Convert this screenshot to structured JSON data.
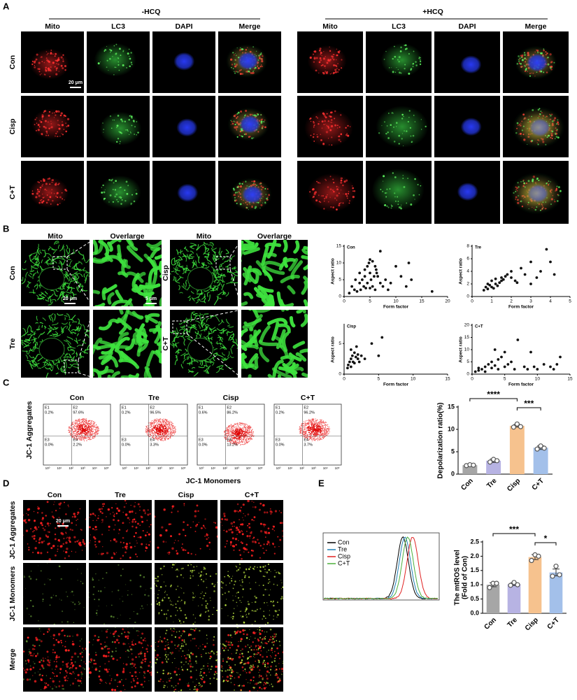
{
  "panels": {
    "A": {
      "label": "A",
      "groups": [
        {
          "title": "-HCQ",
          "columns": [
            "Mito",
            "LC3",
            "DAPI",
            "Merge"
          ]
        },
        {
          "title": "+HCQ",
          "columns": [
            "Mito",
            "LC3",
            "DAPI",
            "Merge"
          ]
        }
      ],
      "rows": [
        "Con",
        "Cisp",
        "C+T"
      ],
      "scale_bar": "20 μm"
    },
    "B": {
      "label": "B",
      "columns": [
        "Mito",
        "Overlarge",
        "Mito",
        "Overlarge"
      ],
      "rows": [
        "Con",
        "Tre",
        "Cisp",
        "C+T"
      ],
      "scale_bars": [
        "20 μm",
        "5 μm"
      ]
    },
    "C": {
      "label": "C",
      "y_label": "JC-1 Aggregates",
      "x_label": "JC-1 Monomers",
      "axis_ticks": [
        "10⁰",
        "10¹",
        "10²",
        "10³",
        "10⁴",
        "10⁵"
      ],
      "plots": [
        {
          "title": "Con",
          "quadrants": [
            [
              "E1",
              "0.2%"
            ],
            [
              "E2",
              "97.6%"
            ],
            [
              "E3",
              "0.0%"
            ],
            [
              "E4",
              "2.2%"
            ]
          ]
        },
        {
          "title": "Tre",
          "quadrants": [
            [
              "E1",
              "0.2%"
            ],
            [
              "E2",
              "96.5%"
            ],
            [
              "E3",
              "0.0%"
            ],
            [
              "E4",
              "3.3%"
            ]
          ]
        },
        {
          "title": "Cisp",
          "quadrants": [
            [
              "E1",
              "0.6%"
            ],
            [
              "E2",
              "86.2%"
            ],
            [
              "E3",
              "0.0%"
            ],
            [
              "E4",
              "13.2%"
            ]
          ]
        },
        {
          "title": "C+T",
          "quadrants": [
            [
              "E1",
              "0.2%"
            ],
            [
              "E2",
              "96.2%"
            ],
            [
              "E3",
              "0.0%"
            ],
            [
              "E4",
              "3.7%"
            ]
          ]
        }
      ]
    },
    "D": {
      "label": "D",
      "columns": [
        "Con",
        "Tre",
        "Cisp",
        "C+T"
      ],
      "rows": [
        "JC-1 Aggregates",
        "JC-1 Monomers",
        "Merge"
      ],
      "scale_bar": "20 μm"
    },
    "E": {
      "label": "E",
      "legend": [
        {
          "name": "Con",
          "color": "#000000"
        },
        {
          "name": "Tre",
          "color": "#1f7fb4"
        },
        {
          "name": "Cisp",
          "color": "#e02020"
        },
        {
          "name": "C+T",
          "color": "#4caf3a"
        }
      ]
    }
  },
  "chart_data": [
    {
      "type": "scatter",
      "title": "Con",
      "x_label": "Form factor",
      "y_label": "Aspect ratio",
      "color": "#111111",
      "x": [
        1,
        1.5,
        2,
        2.2,
        2.5,
        3,
        3,
        3.2,
        3.5,
        3.8,
        4,
        4,
        4.2,
        4.5,
        4.5,
        4.8,
        5,
        5,
        5.2,
        5.5,
        5.5,
        5.8,
        6,
        6,
        6.2,
        6.5,
        7,
        7,
        7.5,
        8,
        8.5,
        9,
        10,
        11,
        12,
        12.5,
        13,
        17,
        5,
        6.3
      ],
      "y": [
        1,
        3,
        2,
        5,
        1.5,
        4,
        7,
        2,
        5,
        3,
        6,
        8,
        2.5,
        9,
        4,
        10,
        7,
        11,
        5,
        3,
        10.5,
        6,
        9,
        2,
        8,
        6,
        13.5,
        4,
        3,
        5,
        2,
        4,
        9,
        6,
        3,
        10,
        5,
        1.5,
        2.5,
        7
      ],
      "xlim": [
        0,
        20
      ],
      "xticks": [
        0,
        5,
        10,
        15,
        20
      ],
      "ylim": [
        0,
        15
      ],
      "yticks": [
        0,
        5,
        10,
        15
      ]
    },
    {
      "type": "scatter",
      "title": "Tre",
      "x_label": "Form factor",
      "y_label": "Aspect ratio",
      "color": "#111111",
      "x": [
        0.6,
        0.7,
        0.8,
        0.8,
        0.9,
        1,
        1,
        1.1,
        1.2,
        1.2,
        1.3,
        1.4,
        1.5,
        1.5,
        1.6,
        1.8,
        2,
        2,
        2.2,
        2.5,
        2.7,
        3,
        3,
        3.3,
        3.5,
        3.8,
        4,
        4.2,
        1.7,
        2.3
      ],
      "y": [
        1,
        1.5,
        1.2,
        2,
        1.8,
        1.5,
        2.5,
        1.3,
        2,
        2.8,
        1.7,
        2.2,
        3,
        2.5,
        2.7,
        3.5,
        3,
        4,
        2.5,
        4.5,
        3.5,
        2,
        5.5,
        3,
        4,
        7.5,
        5.5,
        3.5,
        3.2,
        2.2
      ],
      "xlim": [
        0,
        5
      ],
      "xticks": [
        0,
        1,
        2,
        3,
        4,
        5
      ],
      "ylim": [
        0,
        8
      ],
      "yticks": [
        0,
        2,
        4,
        6,
        8
      ]
    },
    {
      "type": "scatter",
      "title": "Cisp",
      "x_label": "Form factor",
      "y_label": "Aspect ratio",
      "color": "#111111",
      "x": [
        0.5,
        0.6,
        0.8,
        1,
        1,
        1.2,
        1.3,
        1.5,
        1.5,
        1.7,
        1.8,
        2,
        2,
        2.2,
        2.5,
        3,
        4,
        5,
        5.5,
        1
      ],
      "y": [
        1,
        1.5,
        2,
        2.5,
        1.2,
        3,
        2,
        3.5,
        1.8,
        2.8,
        4.5,
        2.5,
        3.2,
        2,
        3,
        2.5,
        5,
        3,
        6,
        4
      ],
      "xlim": [
        0,
        15
      ],
      "xticks": [
        0,
        5,
        10,
        15
      ],
      "ylim": [
        0,
        8
      ],
      "yticks": [
        0,
        5
      ]
    },
    {
      "type": "scatter",
      "title": "C+T",
      "x_label": "Form factor",
      "y_label": "Aspect ratio",
      "color": "#111111",
      "x": [
        0.5,
        1,
        1,
        1.5,
        2,
        2,
        2.5,
        3,
        3,
        3.5,
        4,
        4,
        4.5,
        5,
        5,
        5.5,
        6,
        6.5,
        7,
        8,
        8.5,
        9,
        9.5,
        10,
        11,
        12,
        12.5,
        13,
        13.5,
        3.5
      ],
      "y": [
        1,
        1.5,
        2.5,
        2,
        3,
        1,
        4,
        2.5,
        5,
        3.5,
        6,
        2,
        7,
        3,
        9,
        4,
        5,
        2,
        14,
        3,
        2,
        9,
        3,
        2,
        4,
        3,
        2,
        4,
        7,
        10
      ],
      "xlim": [
        0,
        15
      ],
      "xticks": [
        0,
        5,
        10,
        15
      ],
      "ylim": [
        0,
        20
      ],
      "yticks": [
        0,
        5,
        10,
        15,
        20
      ]
    },
    {
      "type": "bar",
      "y_label": [
        "Depolarization ratio(%)"
      ],
      "categories": [
        "Con",
        "Tre",
        "Cisp",
        "C+T"
      ],
      "values": [
        2.0,
        3.0,
        10.8,
        5.9
      ],
      "errors": [
        0.1,
        0.4,
        0.3,
        0.4
      ],
      "points": [
        [
          1.9,
          2.1,
          2.0
        ],
        [
          2.7,
          3.3,
          3.0
        ],
        [
          10.5,
          11.2,
          10.6
        ],
        [
          5.6,
          6.3,
          5.8
        ]
      ],
      "colors": [
        "#a6a6a6",
        "#b7b3e3",
        "#f6c28e",
        "#a3c0ea"
      ],
      "ylim": [
        0,
        15
      ],
      "yticks": [
        0,
        5,
        10,
        15
      ],
      "significance": [
        "****",
        "***"
      ]
    },
    {
      "type": "bar",
      "y_label": [
        "The mtROS level",
        "(Fold of Con)"
      ],
      "categories": [
        "Con",
        "Tre",
        "Cisp",
        "C+T"
      ],
      "values": [
        1.0,
        1.02,
        1.97,
        1.43
      ],
      "errors": [
        0.07,
        0.05,
        0.09,
        0.12
      ],
      "points": [
        [
          0.9,
          1.05,
          1.05
        ],
        [
          0.98,
          1.08,
          1.0
        ],
        [
          1.85,
          2.05,
          2.0
        ],
        [
          1.3,
          1.65,
          1.35
        ]
      ],
      "colors": [
        "#a6a6a6",
        "#b7b3e3",
        "#f6c28e",
        "#a3c0ea"
      ],
      "ylim": [
        0,
        2.5
      ],
      "yticks": [
        {
          "value": 0,
          "label": "0.0"
        },
        {
          "value": 0.5,
          "label": "0.5"
        },
        {
          "value": 1,
          "label": "1.0"
        },
        {
          "value": 1.5,
          "label": "1.5"
        },
        {
          "value": 2,
          "label": "2.0"
        },
        {
          "value": 2.5,
          "label": "2.5"
        }
      ],
      "significance": [
        "***",
        "*"
      ]
    }
  ]
}
